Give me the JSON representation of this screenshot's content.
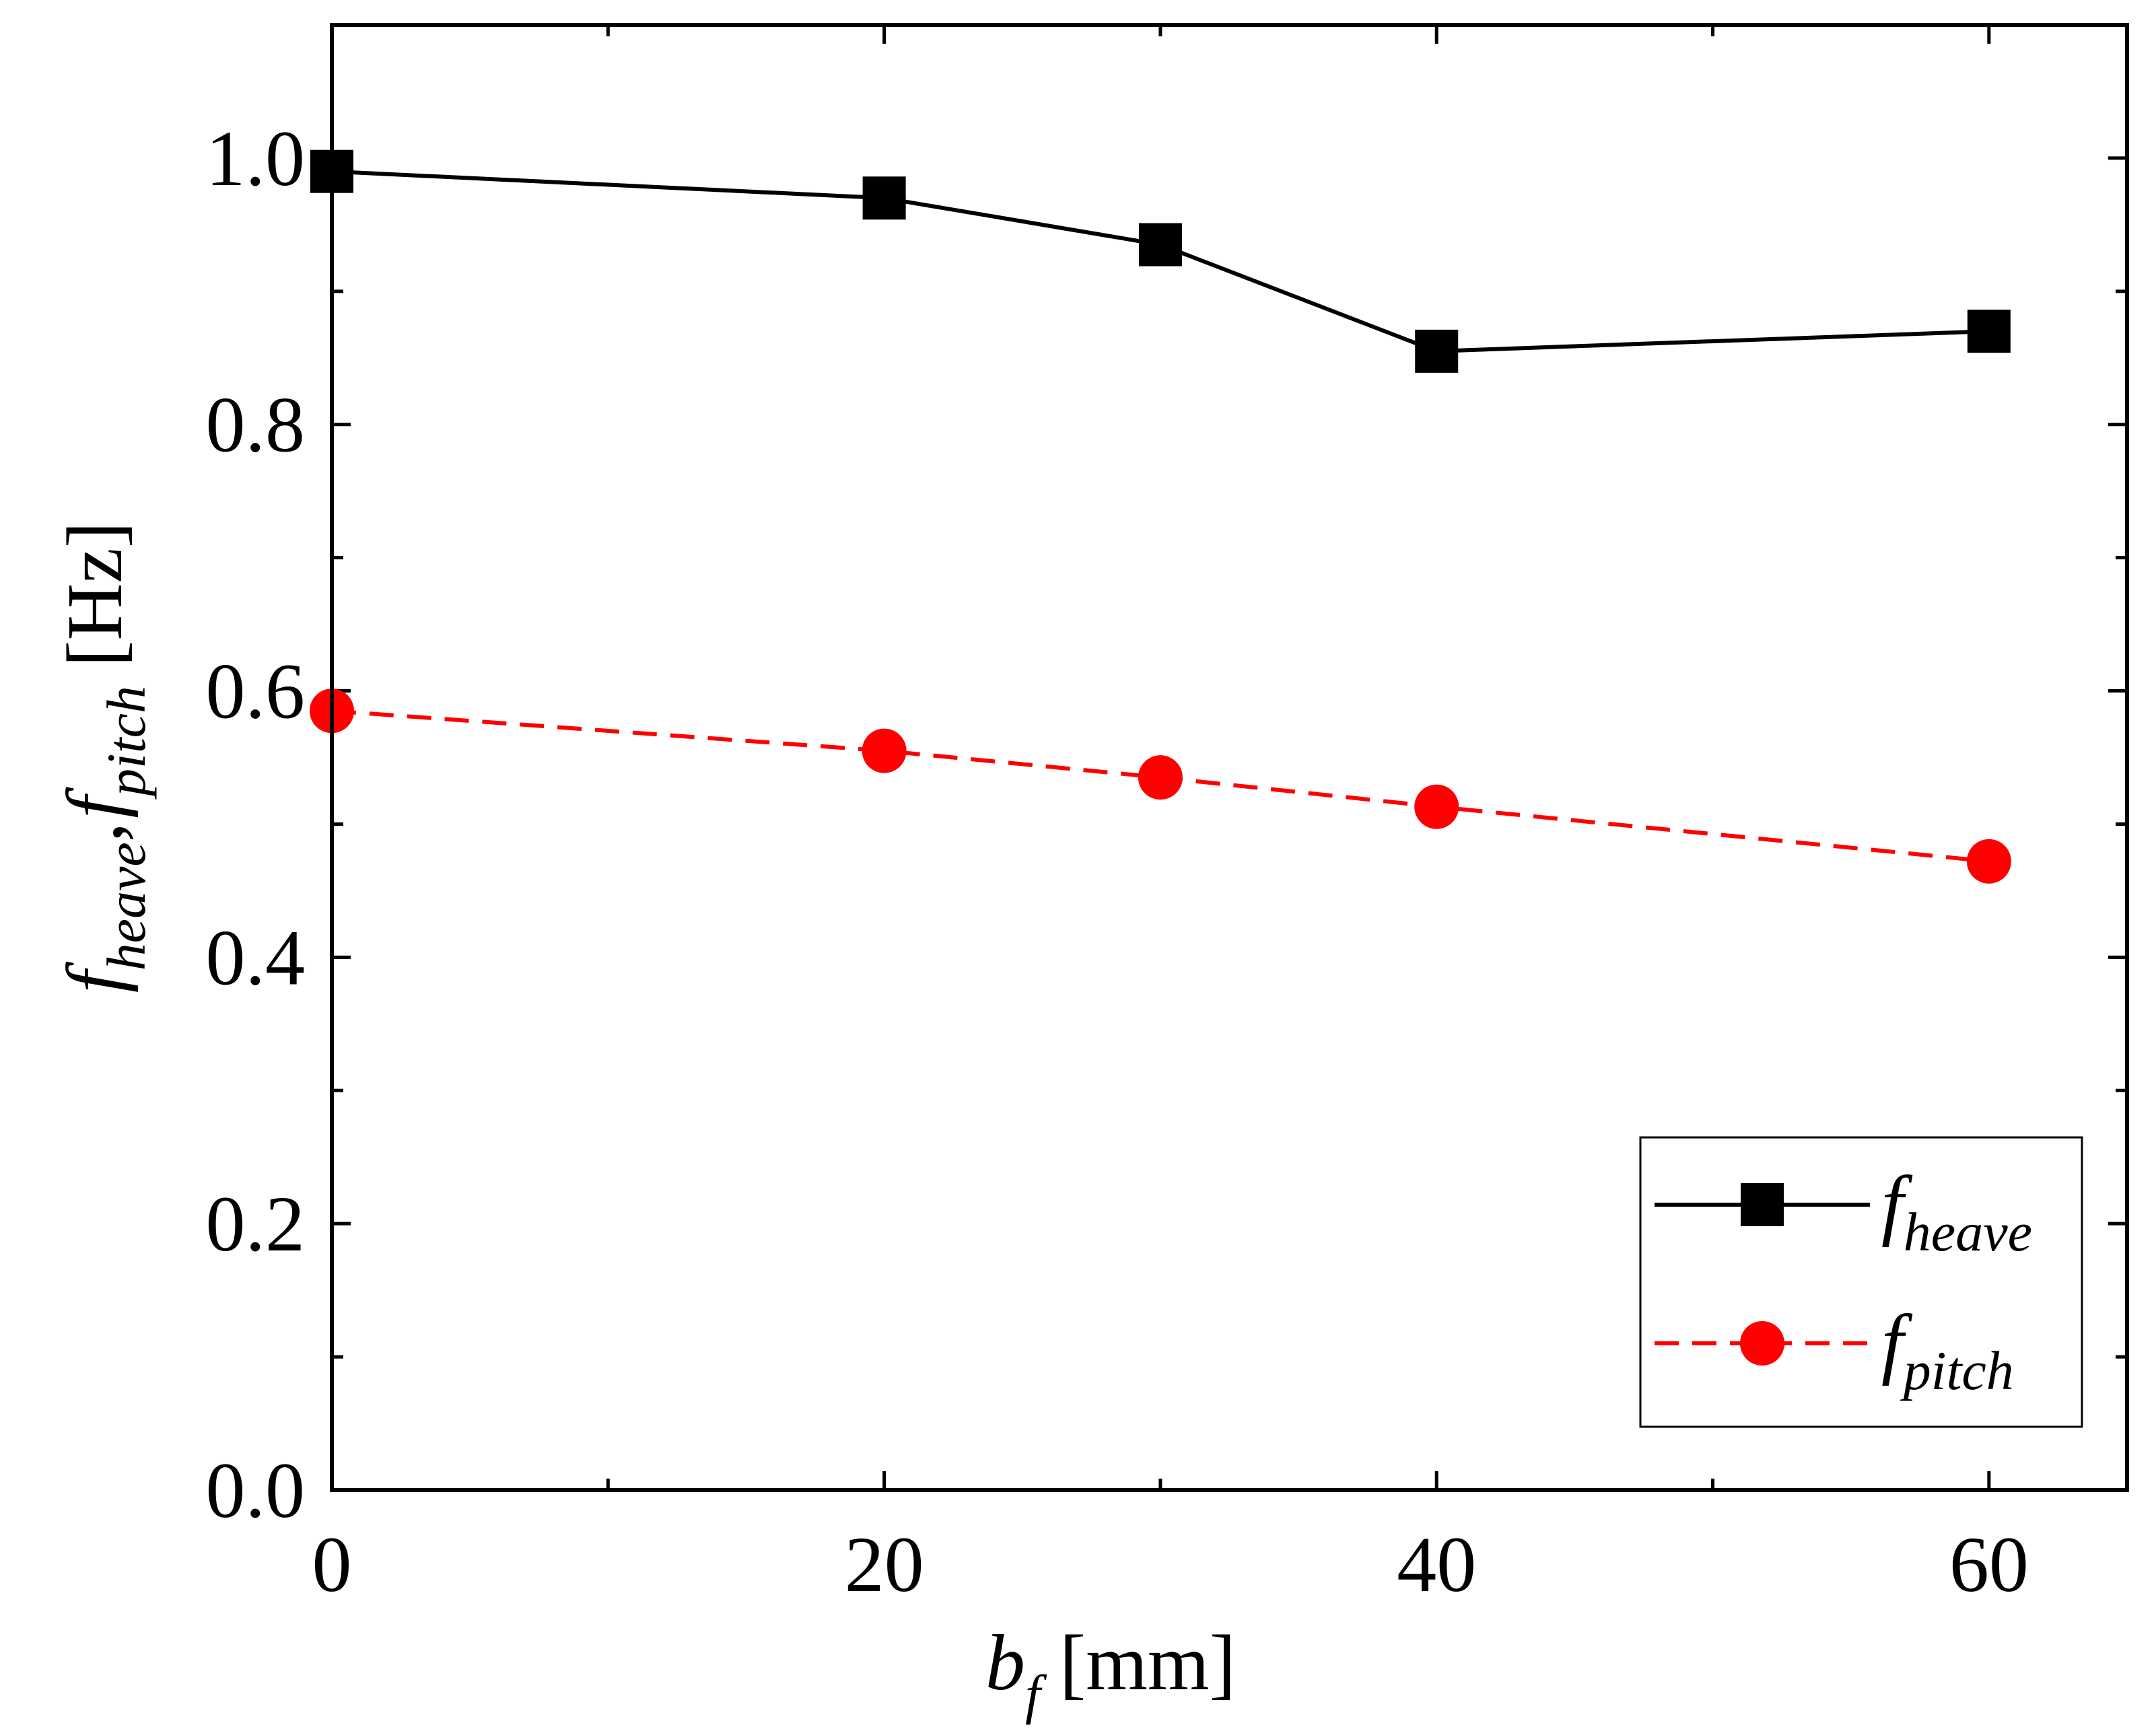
{
  "chart_data": {
    "type": "line",
    "x": [
      0,
      20,
      30,
      40,
      60
    ],
    "series": [
      {
        "name": "f_heave",
        "label_main": "f",
        "label_sub": "heave",
        "values": [
          0.99,
          0.97,
          0.935,
          0.855,
          0.87
        ],
        "color": "#000000",
        "marker": "square",
        "line_style": "solid"
      },
      {
        "name": "f_pitch",
        "label_main": "f",
        "label_sub": "pitch",
        "values": [
          0.585,
          0.555,
          0.535,
          0.513,
          0.472
        ],
        "color": "#ff0000",
        "marker": "circle",
        "line_style": "dashed"
      }
    ],
    "xlim": [
      0,
      65
    ],
    "ylim": [
      0,
      1.1
    ],
    "x_ticks": [
      0,
      20,
      40,
      60
    ],
    "x_tick_labels": [
      "0",
      "20",
      "40",
      "60"
    ],
    "x_minor_ticks": [
      10,
      30,
      50
    ],
    "y_ticks": [
      0.0,
      0.2,
      0.4,
      0.6,
      0.8,
      1.0
    ],
    "y_tick_labels": [
      "0.0",
      "0.2",
      "0.4",
      "0.6",
      "0.8",
      "1.0"
    ],
    "y_minor_ticks": [
      0.1,
      0.3,
      0.5,
      0.7,
      0.9
    ],
    "xlabel": {
      "main": "b",
      "sub": "f",
      "unit": "[mm]"
    },
    "ylabel": {
      "f1": "f",
      "sub1": "heave",
      "comma": ",",
      "f2": "f",
      "sub2": "pitch",
      "unit": "[Hz]"
    },
    "grid": false,
    "legend_position": "bottom-right"
  }
}
